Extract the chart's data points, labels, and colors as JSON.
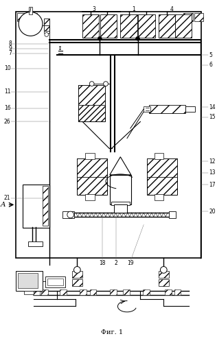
{
  "title": "Фиг. 1",
  "bg_color": "#ffffff",
  "fig_width": 3.16,
  "fig_height": 5.0,
  "dpi": 100
}
